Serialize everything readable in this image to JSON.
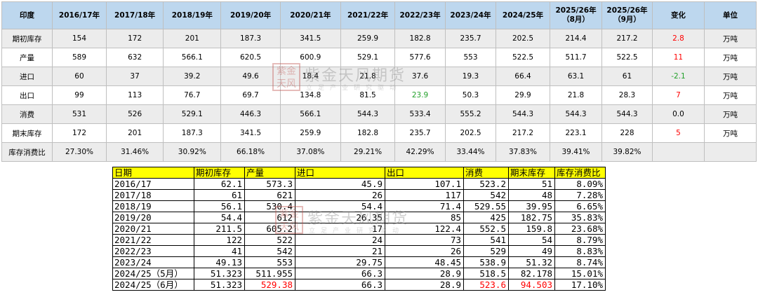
{
  "top_table": {
    "headers": [
      "印度",
      "2016/17年",
      "2017/18年",
      "2018/19年",
      "2019/20年",
      "2020/21年",
      "2021/22年",
      "2022/23年",
      "2023/24年",
      "2024/25年",
      "2025/26年\n（8月）",
      "2025/26年\n（9月）",
      "变化",
      "单位"
    ],
    "rows": [
      {
        "label": "期初库存",
        "values": [
          "154",
          "172",
          "201",
          "187.3",
          "341.5",
          "259.9",
          "182.8",
          "235.7",
          "202.5",
          "214.4",
          "217.2"
        ],
        "change": "2.8",
        "change_color": "#ff0000",
        "unit": "万吨"
      },
      {
        "label": "产量",
        "values": [
          "589",
          "632",
          "566.1",
          "620.5",
          "600.9",
          "529.1",
          "577.6",
          "553",
          "522.5",
          "511.7",
          "522.5"
        ],
        "change": "11",
        "change_color": "#ff0000",
        "unit": "万吨"
      },
      {
        "label": "进口",
        "values": [
          "60",
          "37",
          "39.2",
          "49.6",
          "18.4",
          "21.8",
          "37.6",
          "19.3",
          "66.4",
          "63.1",
          "61"
        ],
        "change": "-2.1",
        "change_color": "#22a02a",
        "unit": "万吨"
      },
      {
        "label": "出口",
        "values": [
          "99",
          "113",
          "76.7",
          "69.7",
          "134.8",
          "81.5",
          "23.9",
          "50.3",
          "29.9",
          "21.8",
          "28.3"
        ],
        "change": "7",
        "change_color": "#ff0000",
        "unit": "万吨",
        "green_index": 6
      },
      {
        "label": "消费",
        "values": [
          "531",
          "526",
          "529.1",
          "446.3",
          "566.1",
          "544.3",
          "533.4",
          "555.2",
          "544.3",
          "544.3",
          "544.3"
        ],
        "change": "0.0",
        "change_color": "#000000",
        "unit": "万吨"
      },
      {
        "label": "期末库存",
        "values": [
          "172",
          "201",
          "187.3",
          "341.5",
          "259.9",
          "182.8",
          "235.7",
          "202.5",
          "217.2",
          "223.1",
          "228"
        ],
        "change": "5",
        "change_color": "#ff0000",
        "unit": "万吨"
      },
      {
        "label": "库存消费比",
        "values": [
          "27.30%",
          "31.46%",
          "30.92%",
          "66.18%",
          "37.08%",
          "29.21%",
          "42.29%",
          "33.44%",
          "37.83%",
          "39.41%",
          "39.82%"
        ],
        "change": "",
        "change_color": "#000000",
        "unit": ""
      }
    ]
  },
  "bottom_table": {
    "headers": [
      "日期",
      "期初库存",
      "产量",
      "进口",
      "出口",
      "消费",
      "期末库存",
      "库存消费比"
    ],
    "rows": [
      {
        "period": "2016/17",
        "values": [
          "62.1",
          "573.3",
          "45.9",
          "107.1",
          "523.2",
          "51",
          "8.09%"
        ]
      },
      {
        "period": "2017/18",
        "values": [
          "61",
          "621",
          "26",
          "117",
          "542",
          "48",
          "7.28%"
        ]
      },
      {
        "period": "2018/19",
        "values": [
          "56.1",
          "530.4",
          "54.4",
          "71.4",
          "529.55",
          "39.95",
          "6.65%"
        ]
      },
      {
        "period": "2019/20",
        "values": [
          "54.4",
          "612",
          "26.35",
          "85",
          "425",
          "182.75",
          "35.83%"
        ]
      },
      {
        "period": "2020/21",
        "values": [
          "211.5",
          "605.2",
          "17",
          "122.4",
          "552.5",
          "159.8",
          "23.68%"
        ]
      },
      {
        "period": "2021/22",
        "values": [
          "122",
          "522",
          "24",
          "73",
          "541",
          "54",
          "8.79%"
        ]
      },
      {
        "period": "2022/23",
        "values": [
          "41",
          "542",
          "21",
          "26",
          "529",
          "49",
          "8.83%"
        ]
      },
      {
        "period": "2023/24",
        "values": [
          "49.13",
          "553",
          "29.75",
          "48.45",
          "538.9",
          "51.32",
          "8.74%"
        ]
      },
      {
        "period": "2024/25（5月）",
        "values": [
          "51.323",
          "511.955",
          "66.3",
          "28.9",
          "518.5",
          "82.178",
          "15.01%"
        ]
      },
      {
        "period": "2024/25（6月）",
        "values": [
          "51.323",
          "529.38",
          "66.3",
          "28.9",
          "523.6",
          "94.503",
          "17.10%"
        ],
        "red_indices": [
          1,
          4,
          5
        ]
      }
    ]
  },
  "watermark": {
    "seal_text": "紫金天风",
    "company_name": "紫金天风期货",
    "slogan": "立足产业研究驱动"
  },
  "colors": {
    "top_header_bg": "#bdd7ee",
    "top_stripe_bg": "#ececec",
    "bottom_header_bg": "#ffff00",
    "increase": "#ff0000",
    "decrease": "#22a02a"
  }
}
